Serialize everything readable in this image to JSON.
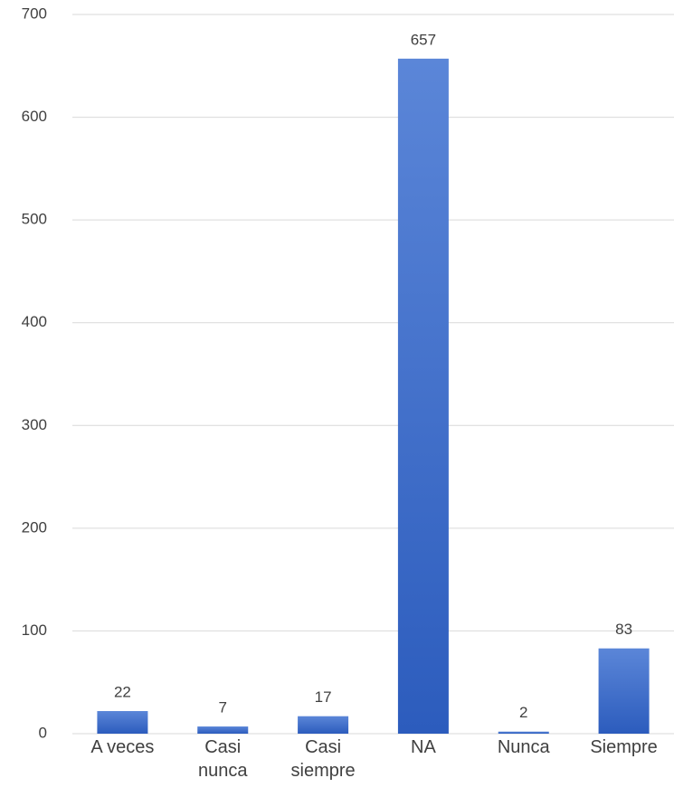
{
  "chart_data": {
    "type": "bar",
    "categories": [
      "A veces",
      "Casi nunca",
      "Casi siempre",
      "NA",
      "Nunca",
      "Siempre"
    ],
    "values": [
      22,
      7,
      17,
      657,
      2,
      83
    ],
    "color": "#4472c4",
    "ylim": [
      0,
      700
    ],
    "yticks": [
      0,
      100,
      200,
      300,
      400,
      500,
      600,
      700
    ],
    "grid": true
  }
}
